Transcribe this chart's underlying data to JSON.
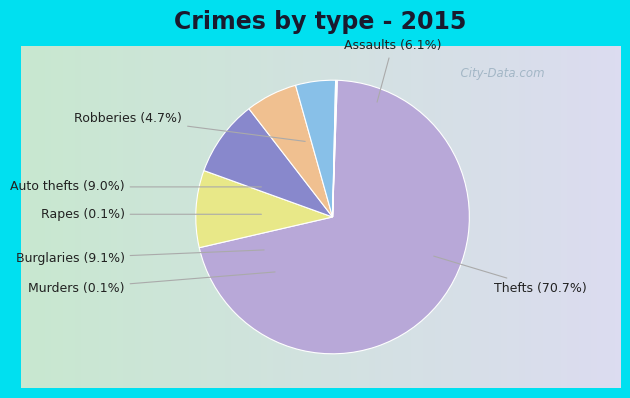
{
  "title": "Crimes by type - 2015",
  "values": [
    70.7,
    9.1,
    9.0,
    6.1,
    4.7,
    0.1,
    0.1
  ],
  "colors": [
    "#b8a8d8",
    "#e8e888",
    "#8888cc",
    "#f0c090",
    "#88c0e8",
    "#f0a8a8",
    "#c8e8c8"
  ],
  "label_texts": [
    [
      "Thefts (70.7%)",
      1.18,
      -0.52,
      "left"
    ],
    [
      "Burglaries (9.1%)",
      -1.52,
      -0.3,
      "right"
    ],
    [
      "Auto thefts (9.0%)",
      -1.52,
      0.22,
      "right"
    ],
    [
      "Assaults (6.1%)",
      0.08,
      1.25,
      "left"
    ],
    [
      "Robberies (4.7%)",
      -1.1,
      0.72,
      "right"
    ],
    [
      "Rapes (0.1%)",
      -1.52,
      0.02,
      "right"
    ],
    [
      "Murders (0.1%)",
      -1.52,
      -0.52,
      "right"
    ]
  ],
  "arrow_endpoints": [
    [
      0.72,
      -0.28
    ],
    [
      -0.48,
      -0.24
    ],
    [
      -0.5,
      0.22
    ],
    [
      0.32,
      0.82
    ],
    [
      -0.18,
      0.55
    ],
    [
      -0.5,
      0.02
    ],
    [
      -0.4,
      -0.4
    ]
  ],
  "bg_cyan": "#00e0f0",
  "bg_grad_left": "#c8e8d0",
  "bg_grad_right": "#dcdcf0",
  "title_fontsize": 17,
  "label_fontsize": 9,
  "startangle": 88,
  "watermark": "  City-Data.com"
}
